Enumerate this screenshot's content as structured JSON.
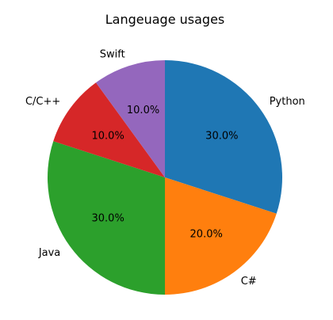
{
  "chart_data": {
    "type": "pie",
    "title": "Langeuage usages",
    "start_angle_deg": 90,
    "direction": "clockwise",
    "slices": [
      {
        "label": "Python",
        "value": 30.0,
        "pct_label": "30.0%",
        "color": "#1f77b4"
      },
      {
        "label": "C#",
        "value": 20.0,
        "pct_label": "20.0%",
        "color": "#ff7f0e"
      },
      {
        "label": "Java",
        "value": 30.0,
        "pct_label": "30.0%",
        "color": "#2ca02c"
      },
      {
        "label": "C/C++",
        "value": 10.0,
        "pct_label": "10.0%",
        "color": "#d62728"
      },
      {
        "label": "Swift",
        "value": 10.0,
        "pct_label": "10.0%",
        "color": "#9467bd"
      }
    ]
  }
}
